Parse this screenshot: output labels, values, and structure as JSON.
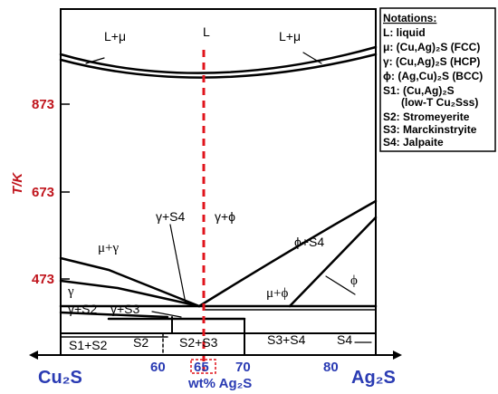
{
  "axes": {
    "ylabel": "T/K",
    "xlabel": "wt% Ag₂S",
    "y_ticks": [
      "873",
      "673",
      "473"
    ],
    "x_ticks": [
      "60",
      "65",
      "70",
      "80"
    ],
    "left_end": "Cu₂S",
    "right_end": "Ag₂S",
    "colors": {
      "y_ticks": "#c0141c",
      "x_ticks": "#2a3bb3",
      "marker": "#e0141c"
    }
  },
  "regions": {
    "liquid": "L",
    "l_mu_left": "L+μ",
    "l_mu_right": "L+μ",
    "mu_gamma": "μ+γ",
    "gamma": "γ",
    "gamma_s4": "γ+S4",
    "gamma_phi": "γ+ϕ",
    "phi_s4": "ϕ+S4",
    "phi": "ϕ",
    "mu_phi": "μ+ϕ",
    "gamma_s2": "γ+S2",
    "gamma_s3": "γ+S3",
    "s1_s2": "S1+S2",
    "s2": "S2",
    "s2_s3": "S2+S3",
    "s3_s4": "S3+S4",
    "s4": "S4"
  },
  "notations": {
    "title": "Notations:",
    "items": [
      "L: liquid",
      "μ: (Cu,Ag)₂S (FCC)",
      "γ: (Cu,Ag)₂S (HCP)",
      "ϕ: (Ag,Cu)₂S (BCC)",
      "S1: (Cu,Ag)₂S",
      "(low-T Cu₂Sss)",
      "S2: Stromeyerite",
      "S3: Marckinstryite",
      "S4: Jalpaite"
    ]
  }
}
